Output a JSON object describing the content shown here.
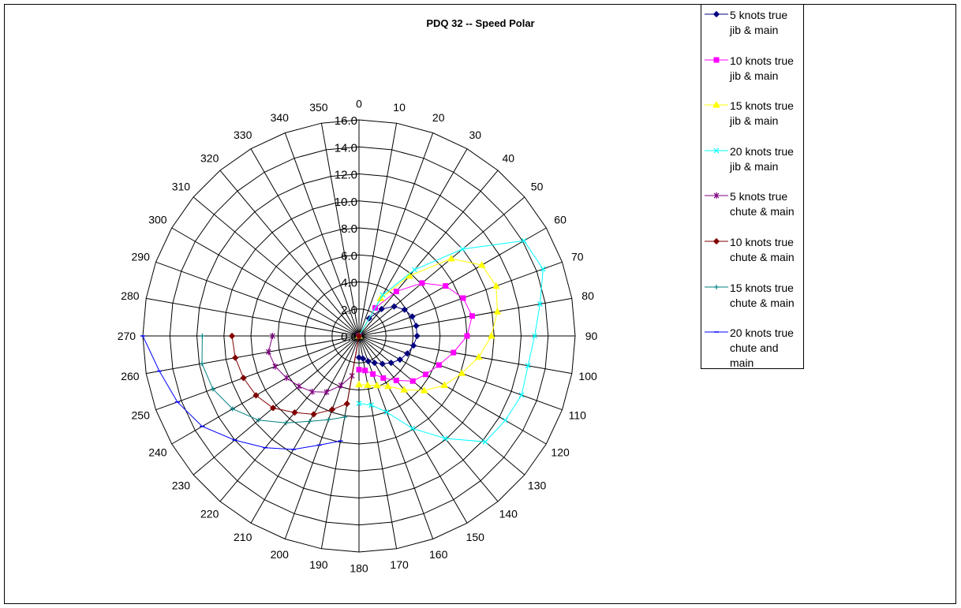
{
  "chart_data": {
    "type": "polar-line",
    "title": "PDQ 32 -- Speed Polar",
    "angular_axis": {
      "unit": "degrees",
      "ticks": [
        0,
        10,
        20,
        30,
        40,
        50,
        60,
        70,
        80,
        90,
        100,
        110,
        120,
        130,
        140,
        150,
        160,
        170,
        180,
        190,
        200,
        210,
        220,
        230,
        240,
        250,
        260,
        270,
        280,
        290,
        300,
        310,
        320,
        330,
        340,
        350
      ]
    },
    "radial_axis": {
      "range": [
        0,
        16
      ],
      "ticks": [
        "0.0",
        "2.0",
        "4.0",
        "6.0",
        "8.0",
        "10.0",
        "12.0",
        "14.0",
        "16.0"
      ]
    },
    "grid": true,
    "legend_position": "right",
    "series": [
      {
        "name": "5 knots true jib & main",
        "color": "#000080",
        "marker": "diamond",
        "points": [
          [
            0,
            0
          ],
          [
            30,
            1.5
          ],
          [
            40,
            2.6
          ],
          [
            50,
            3.4
          ],
          [
            60,
            3.9
          ],
          [
            70,
            4.2
          ],
          [
            80,
            4.3
          ],
          [
            90,
            4.3
          ],
          [
            100,
            4.1
          ],
          [
            110,
            3.8
          ],
          [
            120,
            3.5
          ],
          [
            130,
            3.1
          ],
          [
            140,
            2.7
          ],
          [
            150,
            2.3
          ],
          [
            160,
            2.0
          ],
          [
            170,
            1.7
          ],
          [
            180,
            1.6
          ]
        ]
      },
      {
        "name": "10 knots true jib & main",
        "color": "#FF00FF",
        "marker": "square",
        "points": [
          [
            0,
            0
          ],
          [
            30,
            2.4
          ],
          [
            40,
            4.3
          ],
          [
            50,
            6.1
          ],
          [
            60,
            7.4
          ],
          [
            70,
            8.2
          ],
          [
            80,
            8.5
          ],
          [
            90,
            8.0
          ],
          [
            100,
            7.1
          ],
          [
            110,
            6.3
          ],
          [
            120,
            5.7
          ],
          [
            130,
            5.2
          ],
          [
            140,
            4.3
          ],
          [
            150,
            3.6
          ],
          [
            160,
            3.0
          ],
          [
            170,
            2.6
          ],
          [
            180,
            2.5
          ]
        ]
      },
      {
        "name": "15 knots true jib & main",
        "color": "#FFFF00",
        "marker": "triangle",
        "points": [
          [
            0,
            0
          ],
          [
            30,
            3.2
          ],
          [
            40,
            5.8
          ],
          [
            50,
            8.9
          ],
          [
            60,
            10.5
          ],
          [
            70,
            10.8
          ],
          [
            80,
            10.4
          ],
          [
            90,
            9.8
          ],
          [
            100,
            9.0
          ],
          [
            110,
            8.1
          ],
          [
            120,
            7.3
          ],
          [
            130,
            6.3
          ],
          [
            140,
            5.2
          ],
          [
            150,
            4.3
          ],
          [
            160,
            3.9
          ],
          [
            170,
            3.7
          ],
          [
            180,
            3.6
          ]
        ]
      },
      {
        "name": "20 knots true jib & main",
        "color": "#00FFFF",
        "marker": "x",
        "points": [
          [
            0,
            0
          ],
          [
            30,
            3.5
          ],
          [
            40,
            6.4
          ],
          [
            50,
            10.0
          ],
          [
            60,
            14.1
          ],
          [
            70,
            14.5
          ],
          [
            80,
            13.6
          ],
          [
            90,
            13.0
          ],
          [
            100,
            12.7
          ],
          [
            110,
            12.8
          ],
          [
            120,
            12.5
          ],
          [
            130,
            12.2
          ],
          [
            140,
            9.9
          ],
          [
            150,
            7.9
          ],
          [
            160,
            6.0
          ],
          [
            170,
            5.2
          ],
          [
            180,
            5.0
          ]
        ]
      }
    ],
    "spinnaker_series": [
      {
        "name": "5 knots true chute & main",
        "color": "#800080",
        "marker": "star",
        "points": [
          [
            180,
            0
          ],
          [
            190,
            3.0
          ],
          [
            200,
            3.9
          ],
          [
            210,
            4.8
          ],
          [
            220,
            5.4
          ],
          [
            230,
            5.8
          ],
          [
            240,
            6.2
          ],
          [
            250,
            6.6
          ],
          [
            260,
            6.8
          ],
          [
            270,
            6.4
          ]
        ]
      },
      {
        "name": "10 knots true chute & main",
        "color": "#800000",
        "marker": "diamond",
        "points": [
          [
            180,
            0
          ],
          [
            190,
            5.1
          ],
          [
            200,
            5.8
          ],
          [
            210,
            6.7
          ],
          [
            220,
            7.4
          ],
          [
            230,
            8.3
          ],
          [
            240,
            8.8
          ],
          [
            250,
            9.1
          ],
          [
            260,
            9.3
          ],
          [
            270,
            9.4
          ]
        ]
      },
      {
        "name": "15 knots true chute & main",
        "color": "#008080",
        "marker": "plus",
        "points": [
          [
            190,
            6.1
          ],
          [
            200,
            6.6
          ],
          [
            210,
            7.3
          ],
          [
            220,
            8.4
          ],
          [
            230,
            9.7
          ],
          [
            240,
            10.8
          ],
          [
            250,
            11.5
          ],
          [
            260,
            11.8
          ],
          [
            270,
            11.6
          ]
        ]
      },
      {
        "name": "20 knots true chute and main",
        "color": "#0000FF",
        "marker": "dash",
        "points": [
          [
            190,
            7.9
          ],
          [
            200,
            8.6
          ],
          [
            210,
            9.7
          ],
          [
            220,
            10.8
          ],
          [
            230,
            12.0
          ],
          [
            240,
            13.4
          ],
          [
            250,
            14.3
          ],
          [
            260,
            15.0
          ],
          [
            270,
            16.0
          ]
        ]
      }
    ]
  },
  "legend": {
    "items": [
      {
        "line1": "5 knots true",
        "line2": "jib & main",
        "line3": "",
        "color": "#000080",
        "marker": "diamond"
      },
      {
        "line1": "10 knots true",
        "line2": "jib & main",
        "line3": "",
        "color": "#FF00FF",
        "marker": "square"
      },
      {
        "line1": "15 knots true",
        "line2": "jib & main",
        "line3": "",
        "color": "#FFFF00",
        "marker": "triangle"
      },
      {
        "line1": "20 knots true",
        "line2": "jib & main",
        "line3": "",
        "color": "#00FFFF",
        "marker": "x"
      },
      {
        "line1": "5 knots true",
        "line2": "chute & main",
        "line3": "",
        "color": "#800080",
        "marker": "star"
      },
      {
        "line1": "10 knots true",
        "line2": "chute & main",
        "line3": "",
        "color": "#800000",
        "marker": "diamond"
      },
      {
        "line1": "15 knots true",
        "line2": "chute & main",
        "line3": "",
        "color": "#008080",
        "marker": "plus"
      },
      {
        "line1": "20 knots true",
        "line2": "chute and",
        "line3": "main",
        "color": "#0000FF",
        "marker": "dash"
      }
    ]
  }
}
